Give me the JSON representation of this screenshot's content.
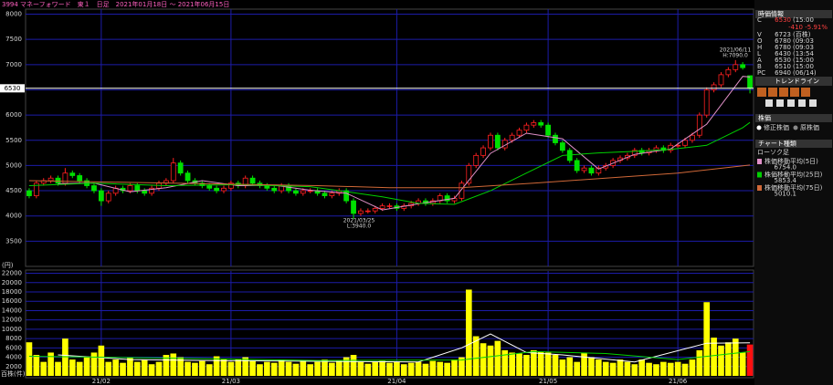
{
  "chart_data": [
    {
      "type": "candlestick",
      "title": "3994 マネーフォワード　東１　日足　2021年01月18日 〜 2021年06月15日",
      "y_unit": "(円)",
      "ylim": [
        3000,
        8100
      ],
      "yticks": [
        3500,
        4000,
        4500,
        5000,
        5500,
        6000,
        6500,
        7000,
        7500,
        8000
      ],
      "grid": true,
      "up_color": "#ff2020",
      "down_color": "#00e000",
      "price_line": 6530,
      "annotations": [
        {
          "date": "2021/06/11",
          "text": "H:7090.0"
        },
        {
          "date": "2021/03/25",
          "text": "L:3940.0"
        }
      ],
      "open": [
        4500,
        4400,
        4650,
        4700,
        4750,
        4650,
        4850,
        4800,
        4700,
        4600,
        4500,
        4300,
        4450,
        4550,
        4500,
        4600,
        4500,
        4450,
        4550,
        4650,
        4700,
        5050,
        4850,
        4700,
        4650,
        4600,
        4550,
        4500,
        4550,
        4650,
        4600,
        4750,
        4650,
        4600,
        4550,
        4500,
        4600,
        4500,
        4450,
        4500,
        4500,
        4450,
        4400,
        4450,
        4500,
        4300,
        4050,
        4100,
        4100,
        4150,
        4200,
        4200,
        4150,
        4200,
        4250,
        4300,
        4250,
        4300,
        4400,
        4300,
        4350,
        4650,
        5000,
        5200,
        5350,
        5600,
        5350,
        5500,
        5600,
        5700,
        5800,
        5850,
        5800,
        5600,
        5450,
        5300,
        5100,
        4900,
        4950,
        4850,
        4950,
        5000,
        5100,
        5150,
        5200,
        5300,
        5250,
        5300,
        5350,
        5300,
        5400,
        5400,
        5500,
        5600,
        6000,
        6500,
        6600,
        6800,
        6900,
        7000,
        6780
      ],
      "high": [
        4550,
        4700,
        4750,
        4800,
        4800,
        4950,
        4900,
        4850,
        4750,
        4650,
        4550,
        4500,
        4600,
        4600,
        4650,
        4650,
        4550,
        4600,
        4700,
        4750,
        5150,
        5100,
        4900,
        4750,
        4700,
        4650,
        4600,
        4600,
        4700,
        4700,
        4800,
        4800,
        4700,
        4650,
        4600,
        4650,
        4650,
        4550,
        4550,
        4550,
        4550,
        4500,
        4500,
        4550,
        4550,
        4350,
        4150,
        4150,
        4200,
        4250,
        4250,
        4250,
        4250,
        4300,
        4350,
        4350,
        4350,
        4450,
        4450,
        4400,
        4700,
        5050,
        5250,
        5400,
        5650,
        5650,
        5550,
        5650,
        5750,
        5850,
        5900,
        5900,
        5850,
        5650,
        5500,
        5350,
        5150,
        5000,
        5000,
        5000,
        5050,
        5150,
        5200,
        5250,
        5350,
        5350,
        5350,
        5400,
        5400,
        5450,
        5450,
        5550,
        5650,
        6050,
        6550,
        6650,
        6850,
        6950,
        7090,
        7050,
        6780
      ],
      "low": [
        4350,
        4350,
        4600,
        4650,
        4600,
        4600,
        4750,
        4650,
        4550,
        4450,
        4200,
        4250,
        4400,
        4450,
        4450,
        4450,
        4400,
        4400,
        4500,
        4600,
        4650,
        4800,
        4650,
        4600,
        4550,
        4500,
        4450,
        4450,
        4500,
        4550,
        4550,
        4600,
        4550,
        4500,
        4450,
        4450,
        4450,
        4400,
        4400,
        4450,
        4400,
        4350,
        4350,
        4400,
        4250,
        3940,
        4000,
        4050,
        4050,
        4100,
        4150,
        4100,
        4100,
        4150,
        4200,
        4200,
        4200,
        4250,
        4250,
        4250,
        4300,
        4600,
        4950,
        5150,
        5300,
        5300,
        5300,
        5450,
        5550,
        5650,
        5750,
        5750,
        5550,
        5400,
        5250,
        5050,
        4850,
        4850,
        4800,
        4800,
        4900,
        4950,
        5050,
        5100,
        5150,
        5200,
        5200,
        5250,
        5250,
        5250,
        5350,
        5350,
        5450,
        5550,
        5950,
        6450,
        6550,
        6750,
        6850,
        6900,
        6430
      ],
      "close": [
        4400,
        4650,
        4700,
        4750,
        4650,
        4850,
        4800,
        4700,
        4600,
        4500,
        4300,
        4450,
        4550,
        4500,
        4600,
        4500,
        4450,
        4550,
        4650,
        4700,
        5050,
        4850,
        4700,
        4650,
        4600,
        4550,
        4500,
        4550,
        4650,
        4600,
        4750,
        4650,
        4600,
        4550,
        4500,
        4600,
        4500,
        4450,
        4500,
        4500,
        4450,
        4400,
        4450,
        4500,
        4300,
        4050,
        4100,
        4100,
        4150,
        4200,
        4200,
        4150,
        4200,
        4250,
        4300,
        4250,
        4300,
        4400,
        4300,
        4350,
        4650,
        5000,
        5200,
        5350,
        5600,
        5350,
        5500,
        5600,
        5700,
        5800,
        5850,
        5800,
        5600,
        5450,
        5300,
        5100,
        4900,
        4950,
        4850,
        4950,
        5000,
        5100,
        5150,
        5200,
        5300,
        5250,
        5300,
        5350,
        5300,
        5400,
        5400,
        5500,
        5600,
        6000,
        6500,
        6600,
        6800,
        6900,
        7000,
        6940,
        6530
      ],
      "series": [
        {
          "name": "株価移動平均(5日)",
          "color": "#e090c8",
          "legend_value": "6754.0",
          "x": [
            4,
            9,
            14,
            19,
            24,
            29,
            34,
            39,
            44,
            49,
            54,
            59,
            64,
            69,
            74,
            79,
            84,
            89,
            94,
            99,
            100
          ],
          "values": [
            4640,
            4650,
            4480,
            4560,
            4700,
            4600,
            4610,
            4510,
            4450,
            4120,
            4240,
            4350,
            5240,
            5640,
            5530,
            4930,
            5220,
            5330,
            5820,
            6768,
            6754
          ]
        },
        {
          "name": "株価移動平均(25日)",
          "color": "#00d000",
          "legend_value": "5853.4",
          "x": [
            0,
            9,
            19,
            29,
            39,
            49,
            54,
            59,
            64,
            69,
            74,
            79,
            84,
            89,
            94,
            99,
            100
          ],
          "values": [
            4600,
            4650,
            4600,
            4620,
            4580,
            4380,
            4250,
            4230,
            4500,
            4850,
            5200,
            5250,
            5280,
            5320,
            5400,
            5750,
            5853.4
          ]
        },
        {
          "name": "株価移動平均(75日)",
          "color": "#d06838",
          "legend_value": "5010.1",
          "x": [
            0,
            20,
            40,
            50,
            60,
            70,
            80,
            90,
            100
          ],
          "values": [
            4700,
            4650,
            4600,
            4560,
            4560,
            4650,
            4750,
            4850,
            5010.1
          ]
        }
      ]
    },
    {
      "type": "bar",
      "y_unit": "百株(件)",
      "ylim": [
        0,
        22500
      ],
      "yticks": [
        2000,
        4000,
        6000,
        8000,
        10000,
        12000,
        14000,
        16000,
        18000,
        20000,
        22000
      ],
      "grid": true,
      "color": "#ffff00",
      "last_color": "#ff1010",
      "categories": [
        null,
        null,
        null,
        null,
        null,
        null,
        null,
        null,
        null,
        null,
        "21/02",
        null,
        null,
        null,
        null,
        null,
        null,
        null,
        null,
        null,
        null,
        null,
        null,
        null,
        null,
        null,
        null,
        null,
        "21/03",
        null,
        null,
        null,
        null,
        null,
        null,
        null,
        null,
        null,
        null,
        null,
        null,
        null,
        null,
        null,
        null,
        null,
        null,
        null,
        null,
        null,
        null,
        "21/04",
        null,
        null,
        null,
        null,
        null,
        null,
        null,
        null,
        null,
        null,
        null,
        null,
        null,
        null,
        null,
        null,
        null,
        null,
        null,
        null,
        "21/05",
        null,
        null,
        null,
        null,
        null,
        null,
        null,
        null,
        null,
        null,
        null,
        null,
        null,
        null,
        null,
        null,
        null,
        "21/06",
        null,
        null,
        null,
        null,
        null,
        null,
        null,
        null,
        null,
        null
      ],
      "values": [
        7200,
        4500,
        3000,
        5000,
        3000,
        8000,
        3500,
        3000,
        4000,
        5000,
        6500,
        3000,
        3500,
        2800,
        4000,
        3000,
        3500,
        2500,
        3000,
        4500,
        4800,
        4000,
        3000,
        2800,
        3200,
        2500,
        4200,
        3500,
        3000,
        3500,
        4000,
        3200,
        2500,
        3000,
        2800,
        3500,
        3000,
        2600,
        3300,
        2500,
        3000,
        3500,
        2800,
        3200,
        4000,
        4500,
        3000,
        2600,
        3000,
        3200,
        2800,
        3000,
        2500,
        2800,
        3000,
        2600,
        3200,
        3000,
        2800,
        3500,
        4000,
        18500,
        8500,
        7000,
        6500,
        7500,
        5500,
        5000,
        4800,
        4500,
        5500,
        5200,
        5000,
        4500,
        3500,
        4000,
        3000,
        5000,
        4000,
        3500,
        3000,
        2800,
        3500,
        3000,
        2500,
        3500,
        2800,
        2500,
        3000,
        2800,
        3000,
        2600,
        3500,
        5500,
        15800,
        8200,
        6500,
        7200,
        8000,
        5000,
        6723
      ],
      "series": [
        {
          "color": "#ffffff",
          "x": [
            4,
            14,
            24,
            34,
            44,
            54,
            60,
            64,
            69,
            74,
            84,
            94,
            100
          ],
          "values": [
            4500,
            3500,
            3300,
            3200,
            3100,
            3000,
            6000,
            9000,
            5000,
            4500,
            3000,
            7000,
            7100
          ]
        },
        {
          "color": "#00d000",
          "x": [
            0,
            20,
            40,
            60,
            70,
            80,
            90,
            100
          ],
          "values": [
            4200,
            3800,
            3300,
            3400,
            5200,
            4800,
            3500,
            5200
          ]
        }
      ]
    }
  ],
  "side_panel": {
    "title": "時価情報",
    "rows": [
      {
        "label": "C",
        "value": "6530",
        "note": "(15:00"
      },
      {
        "label": "V",
        "value": "6723",
        "note": "(百株)"
      },
      {
        "label": "O",
        "value": "6780",
        "note": "(09:03"
      },
      {
        "label": "H",
        "value": "6780",
        "note": "(09:03"
      },
      {
        "label": "L",
        "value": "6430",
        "note": "(13:54"
      },
      {
        "label": "A",
        "value": "6530",
        "note": "(15:00"
      },
      {
        "label": "B",
        "value": "6510",
        "note": "(15:00"
      },
      {
        "label": "PC",
        "value": "6940",
        "note": "(06/14)"
      }
    ],
    "change": "-410 -5.91%",
    "trendline": "トレンドライン",
    "stock_header": "株価",
    "stock_options": [
      "修正株価",
      "原株価"
    ],
    "chart_header": "チャート種類",
    "chart_kind": "ローソク足"
  }
}
